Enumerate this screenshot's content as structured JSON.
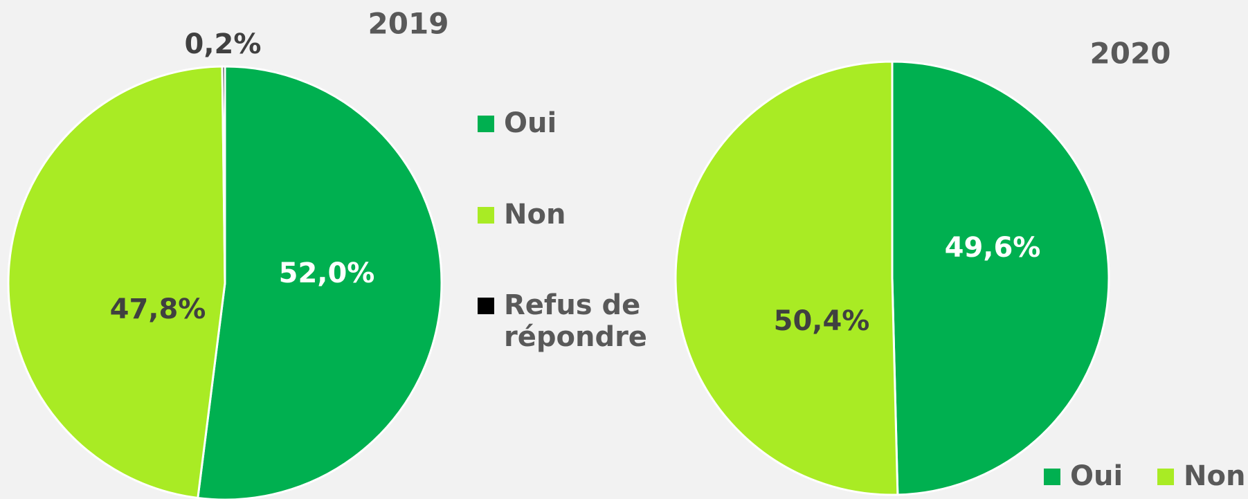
{
  "chart_data": [
    {
      "type": "pie",
      "title": "2019",
      "categories": [
        "Oui",
        "Non",
        "Refus de répondre"
      ],
      "values": [
        52.0,
        47.8,
        0.2
      ],
      "value_labels": [
        "52,0%",
        "47,8%",
        "0,2%"
      ],
      "colors": [
        "#00b050",
        "#a9eb24",
        "#000000"
      ],
      "legend": "right"
    },
    {
      "type": "pie",
      "title": "2020",
      "categories": [
        "Oui",
        "Non"
      ],
      "values": [
        49.6,
        50.4
      ],
      "value_labels": [
        "49,6%",
        "50,4%"
      ],
      "colors": [
        "#00b050",
        "#a9eb24"
      ],
      "legend": "bottom-right"
    }
  ]
}
